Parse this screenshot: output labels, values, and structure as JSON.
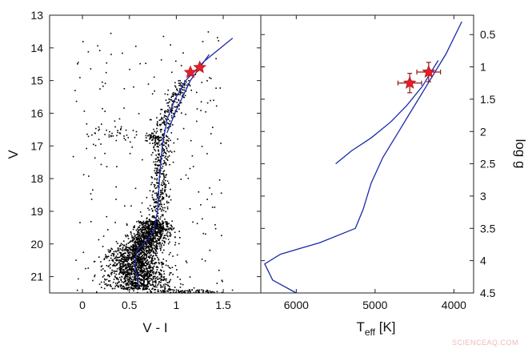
{
  "chart_data": [
    {
      "type": "scatter",
      "panel": "left",
      "xlabel": "V - I",
      "ylabel": "V",
      "xlim": [
        -0.35,
        1.9
      ],
      "ylim": [
        21.5,
        13
      ],
      "y_inverted": true,
      "x_ticks": [
        0,
        0.5,
        1,
        1.5
      ],
      "x_tick_labels": [
        "0",
        "0.5",
        "1",
        "1.5"
      ],
      "y_ticks": [
        13,
        14,
        15,
        16,
        17,
        18,
        19,
        20,
        21
      ],
      "y_tick_labels": [
        "13",
        "14",
        "15",
        "16",
        "17",
        "18",
        "19",
        "20",
        "21"
      ],
      "series": [
        {
          "type": "line",
          "color": "#1a2aa8",
          "x": [
            0.6,
            0.56,
            0.58,
            0.68,
            0.76,
            0.8,
            0.82,
            0.85,
            0.9,
            0.98,
            1.1,
            1.3,
            1.6
          ],
          "y": [
            21.3,
            20.7,
            20.2,
            19.9,
            19.6,
            19.0,
            18.0,
            17.0,
            16.2,
            15.6,
            15.0,
            14.4,
            13.7
          ]
        },
        {
          "type": "line",
          "color": "#1a2aa8",
          "x": [
            0.9,
            1.0,
            1.15,
            1.35
          ],
          "y": [
            16.6,
            15.9,
            15.0,
            14.2
          ]
        },
        {
          "type": "scatter",
          "color": "#e0202a",
          "marker": "star",
          "x": [
            1.15,
            1.25
          ],
          "y": [
            14.75,
            14.6
          ]
        }
      ]
    },
    {
      "type": "line",
      "panel": "right",
      "xlabel": "T",
      "xlabel_subscript": "eff",
      "xlabel_unit": " [K]",
      "ylabel": "log g",
      "xlim": [
        6450,
        3750
      ],
      "ylim": [
        4.5,
        0.2
      ],
      "y_inverted": true,
      "x_inverted": true,
      "x_ticks": [
        6000,
        5000,
        4000
      ],
      "x_tick_labels": [
        "6000",
        "5000",
        "4000"
      ],
      "y_ticks": [
        0.5,
        1,
        1.5,
        2,
        2.5,
        3,
        3.5,
        4,
        4.5
      ],
      "y_tick_labels": [
        "0.5",
        "1",
        "1.5",
        "2",
        "2.5",
        "3",
        "3.5",
        "4",
        "4.5"
      ],
      "series": [
        {
          "type": "line",
          "color": "#1a2aa8",
          "x": [
            6000,
            6300,
            6400,
            6200,
            5700,
            5250,
            5150,
            5050,
            4900,
            4700,
            4500,
            4300,
            4100,
            3900
          ],
          "y": [
            4.5,
            4.3,
            4.05,
            3.9,
            3.72,
            3.5,
            3.2,
            2.8,
            2.4,
            2.0,
            1.6,
            1.2,
            0.8,
            0.3
          ]
        },
        {
          "type": "line",
          "color": "#1a2aa8",
          "x": [
            5500,
            5300,
            5050,
            4800,
            4600,
            4400,
            4200
          ],
          "y": [
            2.5,
            2.3,
            2.1,
            1.85,
            1.6,
            1.3,
            0.9
          ]
        },
        {
          "type": "scatter",
          "color": "#e0202a",
          "marker": "star",
          "x": [
            4560,
            4320
          ],
          "y": [
            1.25,
            1.08
          ],
          "x_err": [
            150,
            150
          ],
          "y_err": [
            0.15,
            0.15
          ]
        }
      ]
    }
  ],
  "watermark": "SCIENCEAQ.COM"
}
